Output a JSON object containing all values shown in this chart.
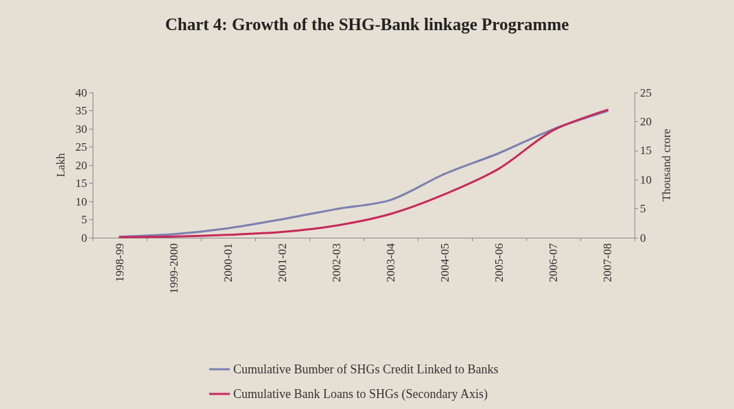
{
  "chart_data": {
    "type": "line",
    "title": "Chart 4: Growth of the SHG-Bank linkage Programme",
    "ylabel": "Lakh",
    "y2label": "Thousand crore",
    "categories": [
      "1998-99",
      "1999-2000",
      "2000-01",
      "2001-02",
      "2002-03",
      "2003-04",
      "2004-05",
      "2005-06",
      "2006-07",
      "2007-08"
    ],
    "series": [
      {
        "name": "Cumulative Bumber of SHGs Credit Linked to Banks",
        "color": "#7a80b0",
        "values": [
          0.3,
          1.0,
          2.6,
          5.1,
          7.9,
          10.4,
          17.6,
          23.3,
          29.9,
          34.9
        ]
      },
      {
        "name": "Cumulative Bank Loans to SHGs (Secondary Axis)",
        "color": "#c8285a",
        "axis": "y2",
        "values": [
          0.1,
          0.2,
          0.5,
          1.0,
          2.1,
          4.1,
          7.5,
          11.9,
          18.5,
          22.0
        ]
      }
    ],
    "ylim": [
      0,
      40
    ],
    "yticks": [
      0,
      5,
      10,
      15,
      20,
      25,
      30,
      35,
      40
    ],
    "y2lim": [
      0,
      25
    ],
    "y2ticks": [
      0,
      5,
      10,
      15,
      20,
      25
    ],
    "grid": false,
    "legend": "bottom",
    "marker": "none",
    "line_style": "solid"
  }
}
